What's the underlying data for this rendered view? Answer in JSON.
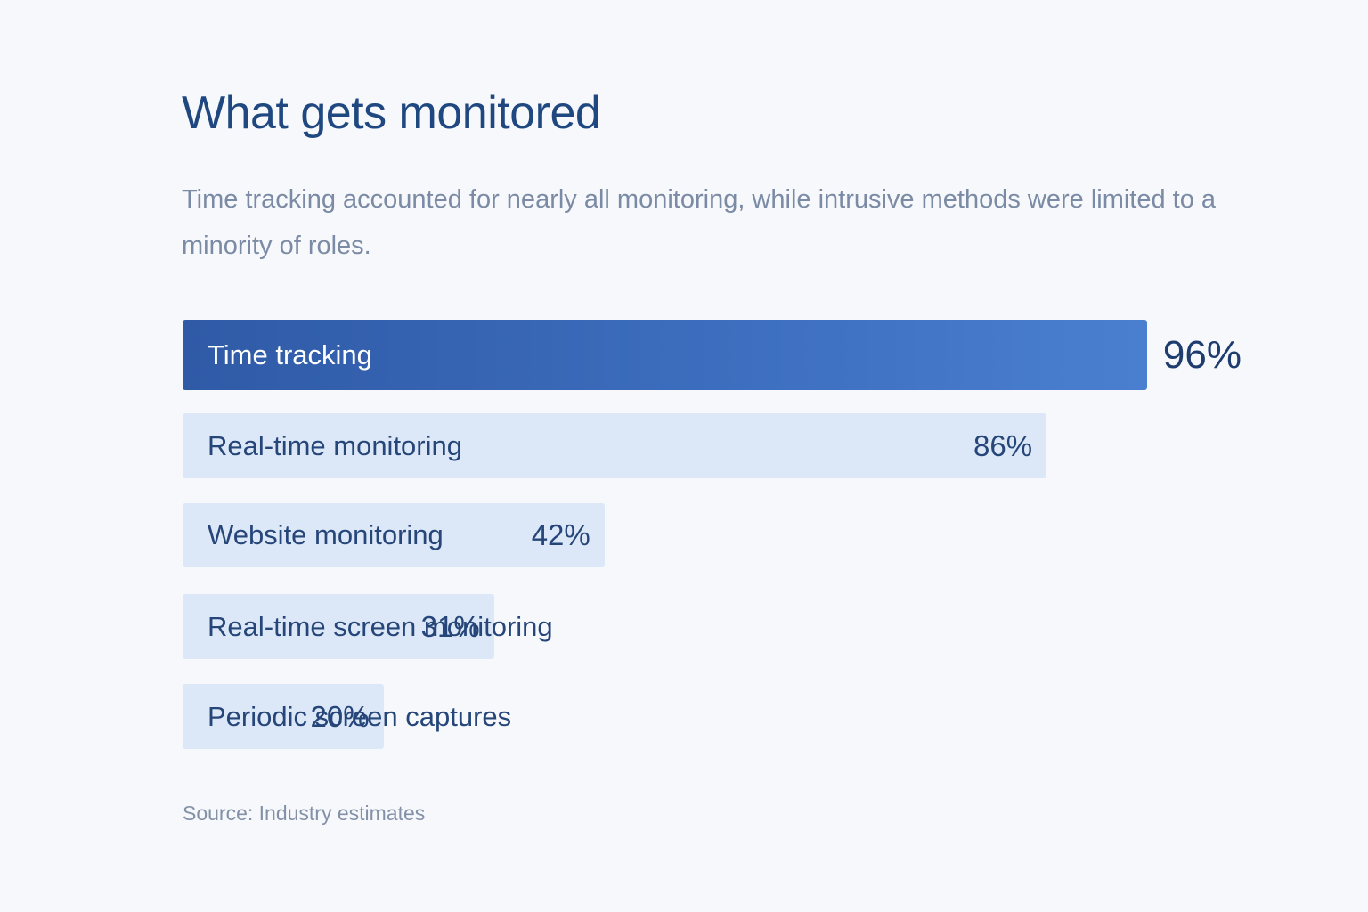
{
  "title": "What gets monitored",
  "subtitle": "Time tracking accounted for nearly all monitoring, while intrusive methods were limited to a minority of roles.",
  "source": "Source: Industry estimates",
  "colors": {
    "highlight_bar": "#3c6ab8",
    "bar": "#dce8f7",
    "text": "#26467a"
  },
  "chart_data": {
    "type": "bar",
    "orientation": "horizontal",
    "title": "What gets monitored",
    "subtitle": "Time tracking accounted for nearly all monitoring, while intrusive methods were limited to a minority of roles.",
    "categories": [
      "Time tracking",
      "Real-time monitoring",
      "Website monitoring",
      "Real-time screen monitoring",
      "Periodic screen captures"
    ],
    "values": [
      96,
      86,
      42,
      31,
      20
    ],
    "value_labels": [
      "96%",
      "86%",
      "42%",
      "31%",
      "20%"
    ],
    "highlighted": [
      true,
      false,
      false,
      false,
      false
    ],
    "unit": "%",
    "grid": false,
    "legend": "none",
    "source": "Source: Industry estimates"
  }
}
